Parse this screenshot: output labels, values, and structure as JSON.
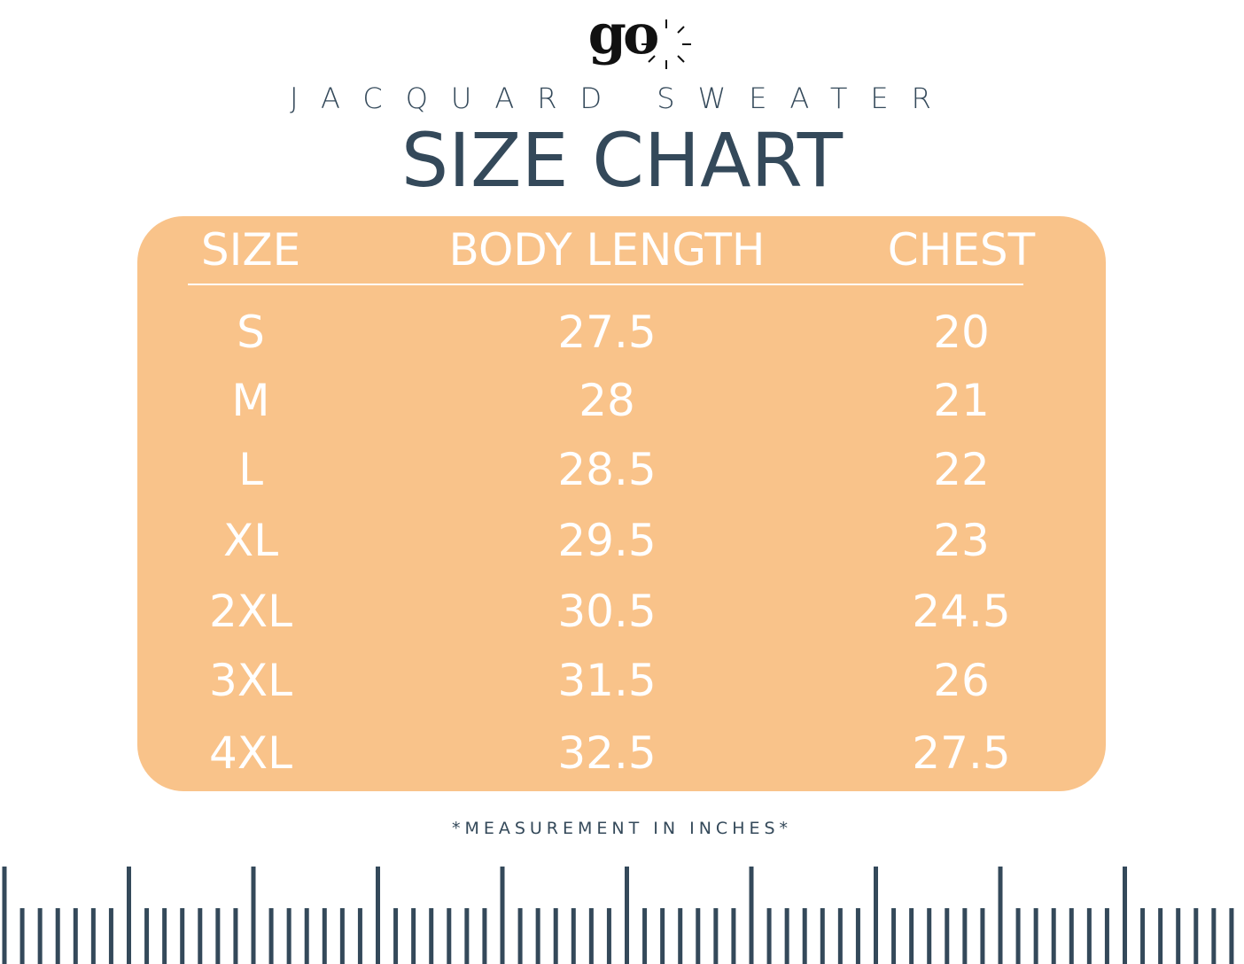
{
  "brand": "go",
  "subtitle": "JACQUARD SWEATER",
  "title": "SIZE CHART",
  "table": {
    "header": [
      "SIZE",
      "BODY LENGTH",
      "CHEST"
    ],
    "rows": [
      [
        "S",
        "27.5",
        "20"
      ],
      [
        "M",
        "28",
        "21"
      ],
      [
        "L",
        "28.5",
        "22"
      ],
      [
        "XL",
        "29.5",
        "23"
      ],
      [
        "2XL",
        "30.5",
        "24.5"
      ],
      [
        "3XL",
        "31.5",
        "26"
      ],
      [
        "4XL",
        "32.5",
        "27.5"
      ]
    ]
  },
  "note": "*MEASUREMENT IN INCHES*"
}
